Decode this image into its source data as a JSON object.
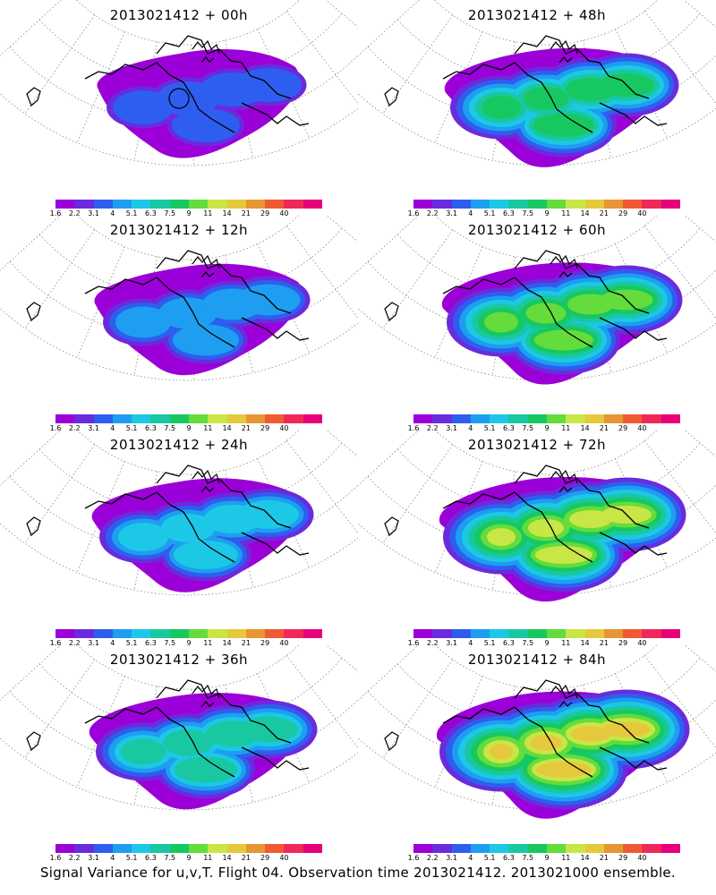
{
  "panels": [
    {
      "title": "2013021412 + 00h"
    },
    {
      "title": "2013021412 + 48h"
    },
    {
      "title": "2013021412 + 12h"
    },
    {
      "title": "2013021412 + 60h"
    },
    {
      "title": "2013021412 + 24h"
    },
    {
      "title": "2013021412 + 72h"
    },
    {
      "title": "2013021412 + 36h"
    },
    {
      "title": "2013021412 + 84h"
    }
  ],
  "colorbar": {
    "labels": [
      "1.6",
      "2.2",
      "3.1",
      "4",
      "5.1",
      "6.3",
      "7.5",
      "9",
      "11",
      "14",
      "21",
      "29",
      "40"
    ],
    "colors": [
      "#9b00d8",
      "#6a2bdc",
      "#2e5ef0",
      "#1e9ef0",
      "#1cc8e6",
      "#19c8a0",
      "#17c860",
      "#64dc3c",
      "#c8e646",
      "#e6c83c",
      "#e69632",
      "#f05a32",
      "#f0285a",
      "#e6007a"
    ]
  },
  "footer": "Signal Variance for u,v,T. Flight 04. Observation time 2013021412. 2013021000 ensemble."
}
